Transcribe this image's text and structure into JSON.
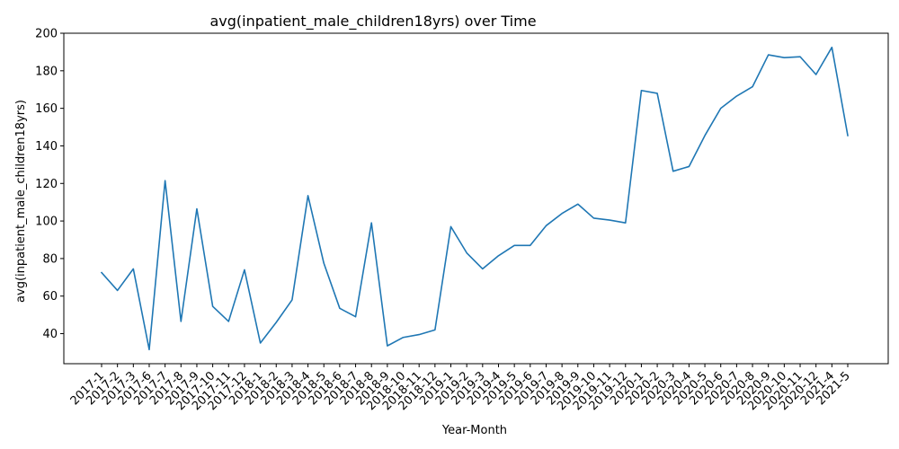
{
  "chart_data": {
    "type": "line",
    "title": "avg(inpatient_male_children18yrs) over Time",
    "xlabel": "Year-Month",
    "ylabel": "avg(inpatient_male_children18yrs)",
    "ylim": [
      24,
      200
    ],
    "yticks": [
      40,
      60,
      80,
      100,
      120,
      140,
      160,
      180,
      200
    ],
    "grid": false,
    "line_color": "#1f77b4",
    "categories": [
      "2017-1",
      "2017-2",
      "2017-3",
      "2017-6",
      "2017-7",
      "2017-8",
      "2017-9",
      "2017-10",
      "2017-11",
      "2017-12",
      "2018-1",
      "2018-2",
      "2018-3",
      "2018-4",
      "2018-5",
      "2018-6",
      "2018-7",
      "2018-8",
      "2018-9",
      "2018-10",
      "2018-11",
      "2018-12",
      "2019-1",
      "2019-2",
      "2019-3",
      "2019-4",
      "2019-5",
      "2019-6",
      "2019-7",
      "2019-8",
      "2019-9",
      "2019-10",
      "2019-11",
      "2019-12",
      "2020-1",
      "2020-2",
      "2020-3",
      "2020-4",
      "2020-5",
      "2020-6",
      "2020-7",
      "2020-8",
      "2020-9",
      "2020-10",
      "2020-11",
      "2020-12",
      "2021-4",
      "2021-5"
    ],
    "series": [
      {
        "values": [
          72.5,
          63,
          74.5,
          31.5,
          121.5,
          46.5,
          106.5,
          54.5,
          46.5,
          74,
          35,
          46,
          58,
          113.5,
          77.5,
          53.5,
          49,
          99,
          33.5,
          38,
          39.5,
          42,
          97,
          83,
          74.5,
          81.5,
          87,
          87,
          97.5,
          104,
          109,
          101.5,
          100.5,
          99,
          169.5,
          168,
          126.5,
          129,
          145.5,
          160,
          166.5,
          171.5,
          188.5,
          187,
          187.5,
          178,
          192.5,
          145.5
        ]
      }
    ]
  }
}
